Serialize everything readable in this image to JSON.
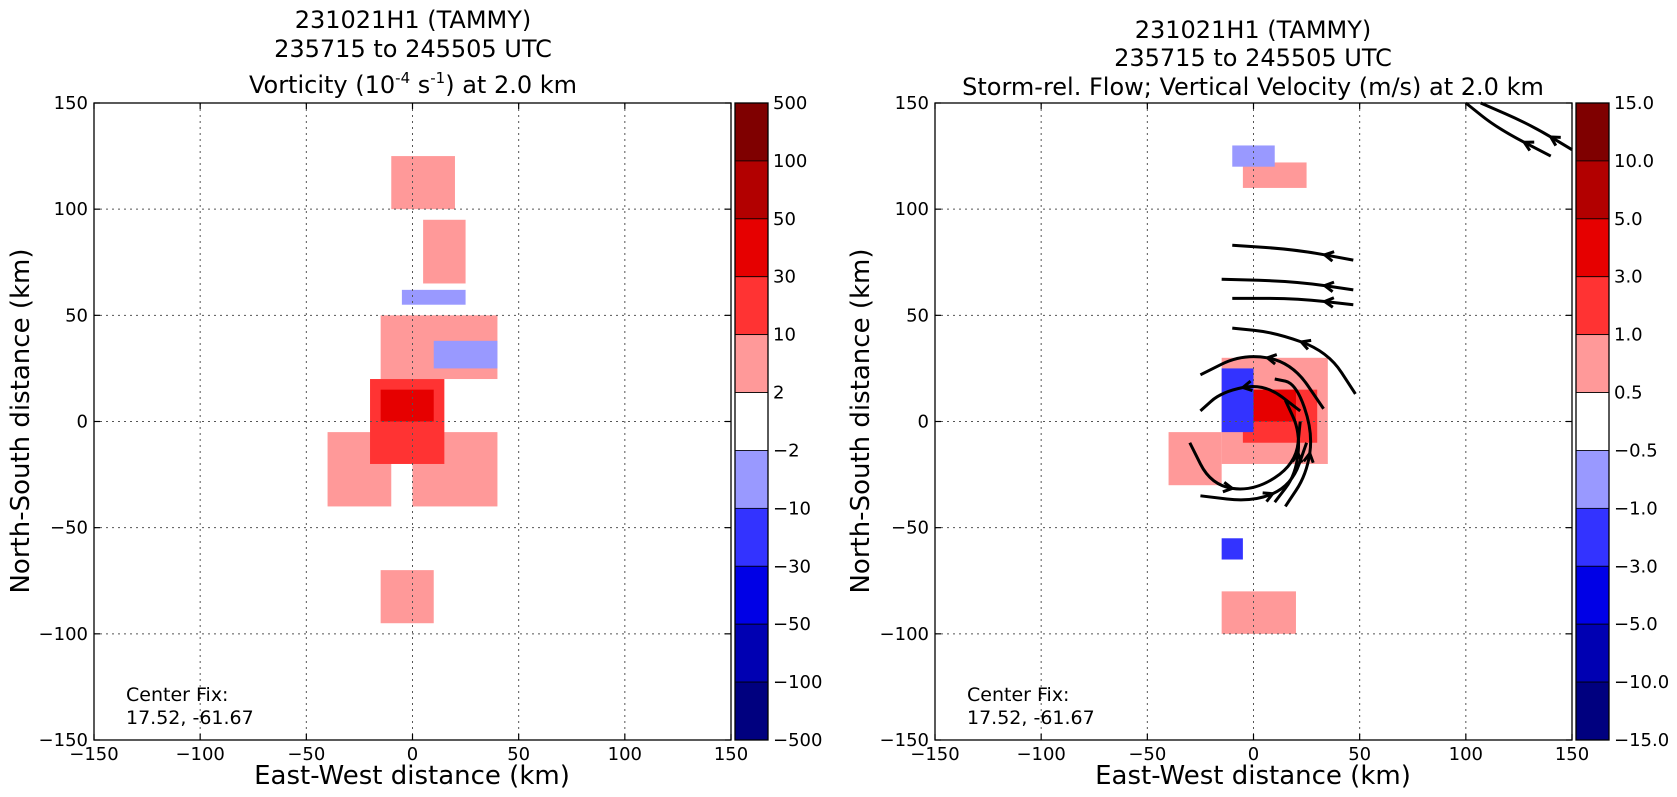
{
  "chart_data": [
    {
      "type": "heatmap",
      "title_lines": [
        "231021H1 (TAMMY)",
        "235715 to 245505 UTC"
      ],
      "title_var": {
        "pre": "Vorticity (10",
        "sup1": "-4",
        "mid": " s",
        "sup2": "-1",
        "post": ") at 2.0 km"
      },
      "xlabel": "East-West distance (km)",
      "ylabel": "North-South distance (km)",
      "xlim": [
        -150,
        150
      ],
      "ylim": [
        -150,
        150
      ],
      "xticks": [
        -150,
        -100,
        -50,
        0,
        50,
        100,
        150
      ],
      "yticks": [
        -150,
        -100,
        -50,
        0,
        50,
        100,
        150
      ],
      "xtick_labels": [
        "−150",
        "−100",
        "−50",
        "0",
        "50",
        "100",
        "150"
      ],
      "ytick_labels": [
        "−150",
        "−100",
        "−50",
        "0",
        "50",
        "100",
        "150"
      ],
      "grid": true,
      "annotation": [
        "Center Fix:",
        "17.52, -61.67"
      ],
      "colorbar": {
        "labels": [
          "500",
          "100",
          "50",
          "30",
          "10",
          "2",
          "−2",
          "−10",
          "−30",
          "−50",
          "−100",
          "−500"
        ],
        "colors": [
          "#7f0000",
          "#b20000",
          "#e60000",
          "#ff3333",
          "#ff9999",
          "#ffffff",
          "#9999ff",
          "#3333ff",
          "#0000e6",
          "#0000b2",
          "#00007f"
        ]
      },
      "regions": [
        {
          "level": 1,
          "x": [
            -10,
            20
          ],
          "y": [
            100,
            125
          ]
        },
        {
          "level": 1,
          "x": [
            5,
            25
          ],
          "y": [
            65,
            95
          ]
        },
        {
          "level": 1,
          "x": [
            -15,
            40
          ],
          "y": [
            20,
            50
          ]
        },
        {
          "level": 1,
          "x": [
            -40,
            -10
          ],
          "y": [
            -40,
            -5
          ]
        },
        {
          "level": 1,
          "x": [
            0,
            40
          ],
          "y": [
            -40,
            -5
          ]
        },
        {
          "level": 1,
          "x": [
            -15,
            10
          ],
          "y": [
            -95,
            -70
          ]
        },
        {
          "level": 2,
          "x": [
            -20,
            15
          ],
          "y": [
            -20,
            20
          ]
        },
        {
          "level": 3,
          "x": [
            -15,
            10
          ],
          "y": [
            0,
            15
          ]
        },
        {
          "level": -1,
          "x": [
            -5,
            25
          ],
          "y": [
            55,
            62
          ]
        },
        {
          "level": -1,
          "x": [
            10,
            40
          ],
          "y": [
            25,
            38
          ]
        }
      ]
    },
    {
      "type": "heatmap",
      "title_lines": [
        "231021H1 (TAMMY)",
        "235715 to 245505 UTC",
        "Storm-rel. Flow; Vertical Velocity (m/s) at 2.0 km"
      ],
      "xlabel": "East-West distance (km)",
      "ylabel": "North-South distance (km)",
      "xlim": [
        -150,
        150
      ],
      "ylim": [
        -150,
        150
      ],
      "xticks": [
        -150,
        -100,
        -50,
        0,
        50,
        100,
        150
      ],
      "yticks": [
        -150,
        -100,
        -50,
        0,
        50,
        100,
        150
      ],
      "xtick_labels": [
        "−150",
        "−100",
        "−50",
        "0",
        "50",
        "100",
        "150"
      ],
      "ytick_labels": [
        "−150",
        "−100",
        "−50",
        "0",
        "50",
        "100",
        "150"
      ],
      "grid": true,
      "annotation": [
        "Center Fix:",
        "17.52, -61.67"
      ],
      "colorbar": {
        "labels": [
          "15.0",
          "10.0",
          "5.0",
          "3.0",
          "1.0",
          "0.5",
          "−0.5",
          "−1.0",
          "−3.0",
          "−5.0",
          "−10.0",
          "−15.0"
        ],
        "colors": [
          "#7f0000",
          "#b20000",
          "#e60000",
          "#ff3333",
          "#ff9999",
          "#ffffff",
          "#9999ff",
          "#3333ff",
          "#0000e6",
          "#0000b2",
          "#00007f"
        ]
      },
      "regions": [
        {
          "level": 1,
          "x": [
            -5,
            25
          ],
          "y": [
            110,
            122
          ]
        },
        {
          "level": 1,
          "x": [
            -15,
            35
          ],
          "y": [
            -20,
            30
          ]
        },
        {
          "level": 1,
          "x": [
            -40,
            -15
          ],
          "y": [
            -30,
            -5
          ]
        },
        {
          "level": 1,
          "x": [
            -15,
            20
          ],
          "y": [
            -100,
            -80
          ]
        },
        {
          "level": 2,
          "x": [
            -5,
            30
          ],
          "y": [
            -10,
            15
          ]
        },
        {
          "level": 3,
          "x": [
            -5,
            20
          ],
          "y": [
            0,
            15
          ]
        },
        {
          "level": -1,
          "x": [
            -10,
            10
          ],
          "y": [
            120,
            130
          ]
        },
        {
          "level": -2,
          "x": [
            -15,
            0
          ],
          "y": [
            -5,
            25
          ]
        },
        {
          "level": -2,
          "x": [
            -15,
            -5
          ],
          "y": [
            -65,
            -55
          ]
        }
      ],
      "streamlines": [
        {
          "points": [
            [
              140,
              125
            ],
            [
              115,
              138
            ],
            [
              100,
              150
            ]
          ]
        },
        {
          "points": [
            [
              150,
              128
            ],
            [
              130,
              140
            ],
            [
              107,
              150
            ]
          ]
        },
        {
          "points": [
            [
              47,
              76
            ],
            [
              20,
              81
            ],
            [
              -10,
              83
            ]
          ]
        },
        {
          "points": [
            [
              47,
              62
            ],
            [
              20,
              66
            ],
            [
              -15,
              67
            ]
          ]
        },
        {
          "points": [
            [
              47,
              55
            ],
            [
              20,
              58
            ],
            [
              -10,
              58
            ]
          ]
        },
        {
          "points": [
            [
              48,
              13
            ],
            [
              35,
              33
            ],
            [
              10,
              42
            ],
            [
              -10,
              44
            ]
          ]
        },
        {
          "points": [
            [
              33,
              6
            ],
            [
              18,
              28
            ],
            [
              -5,
              32
            ],
            [
              -25,
              22
            ]
          ]
        },
        {
          "points": [
            [
              22,
              5
            ],
            [
              5,
              18
            ],
            [
              -15,
              14
            ],
            [
              -25,
              5
            ]
          ]
        },
        {
          "points": [
            [
              15,
              -40
            ],
            [
              25,
              -25
            ],
            [
              28,
              -5
            ],
            [
              20,
              18
            ],
            [
              10,
              20
            ]
          ]
        },
        {
          "points": [
            [
              10,
              -38
            ],
            [
              20,
              -25
            ],
            [
              22,
              -5
            ],
            [
              15,
              10
            ]
          ]
        },
        {
          "points": [
            [
              -30,
              -10
            ],
            [
              -20,
              -30
            ],
            [
              0,
              -33
            ],
            [
              20,
              -20
            ],
            [
              22,
              0
            ]
          ]
        },
        {
          "points": [
            [
              -25,
              -35
            ],
            [
              0,
              -38
            ],
            [
              18,
              -30
            ],
            [
              25,
              -10
            ]
          ]
        }
      ]
    }
  ]
}
